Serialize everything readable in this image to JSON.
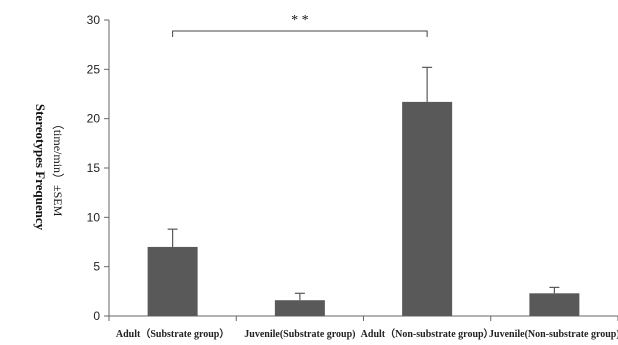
{
  "chart_data": {
    "type": "bar",
    "categories": [
      "Adult（Substrate group）",
      "Juvenile(Substrate group)",
      "Adult（Non-substrate group）",
      "Juvenile(Non-substrate group)"
    ],
    "values": [
      7.0,
      1.6,
      21.7,
      2.3
    ],
    "errors": [
      1.8,
      0.7,
      3.5,
      0.6
    ],
    "ylabel_line1": "Stereotypes Frequency",
    "ylabel_line2": "（time/min）±SEM",
    "ylim": [
      0,
      30
    ],
    "yticks": [
      0,
      5,
      10,
      15,
      20,
      25,
      30
    ],
    "bar_color": "#595959",
    "grid": false,
    "significance": {
      "from_category": 0,
      "to_category": 2,
      "label": "* *"
    }
  }
}
